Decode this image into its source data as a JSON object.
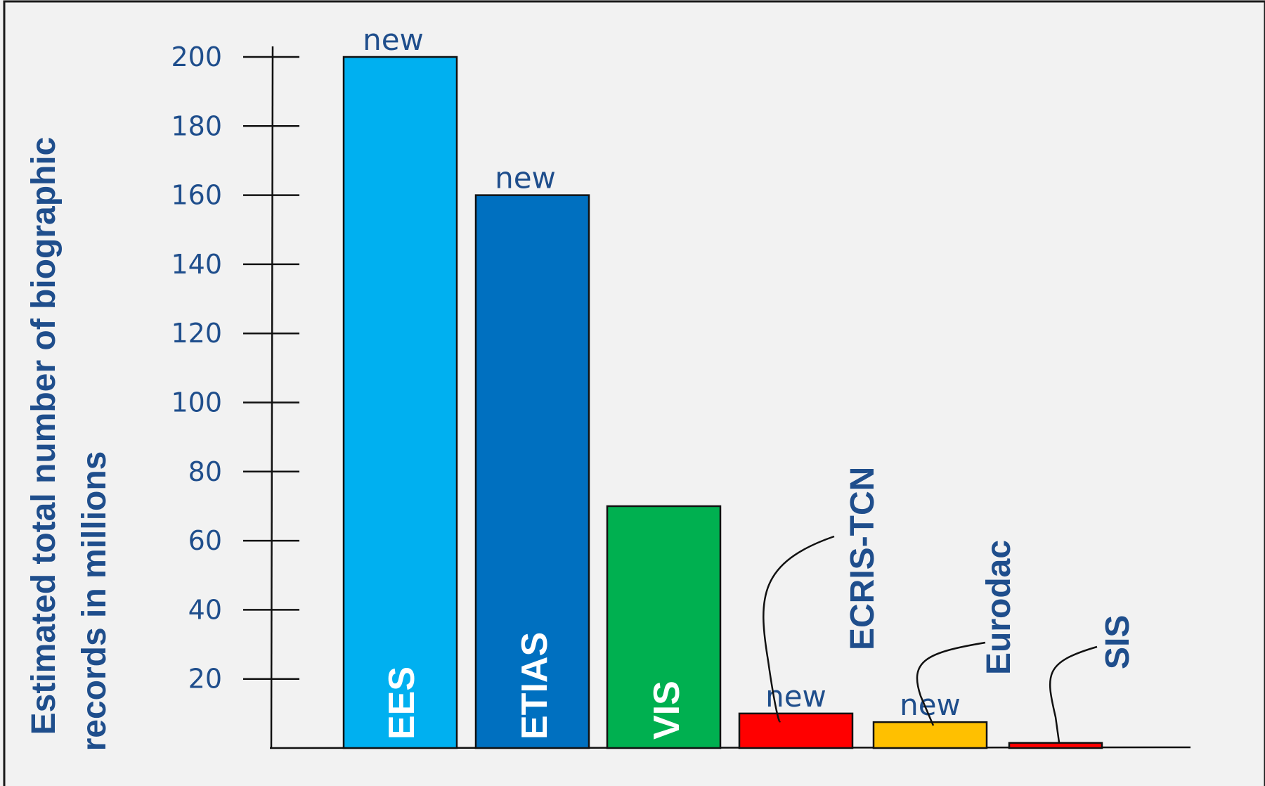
{
  "chart_data": {
    "type": "bar",
    "ylabel": "Estimated total number of biographic records in millions",
    "xlabel": "",
    "ylim": [
      0,
      200
    ],
    "yticks": [
      20,
      40,
      60,
      80,
      100,
      120,
      140,
      160,
      180,
      200
    ],
    "categories": [
      "EES",
      "ETIAS",
      "VIS",
      "ECRIS-TCN",
      "Eurodac",
      "SIS"
    ],
    "values": [
      200,
      160,
      70,
      10,
      7.5,
      1.5
    ],
    "colors": [
      "#00b0f0",
      "#0070c0",
      "#00b050",
      "#ff0000",
      "#ffc000",
      "#ff0000"
    ],
    "new_flags": [
      true,
      true,
      false,
      true,
      true,
      false
    ],
    "new_text": "new",
    "label_inside": [
      true,
      true,
      true,
      false,
      false,
      false
    ]
  }
}
